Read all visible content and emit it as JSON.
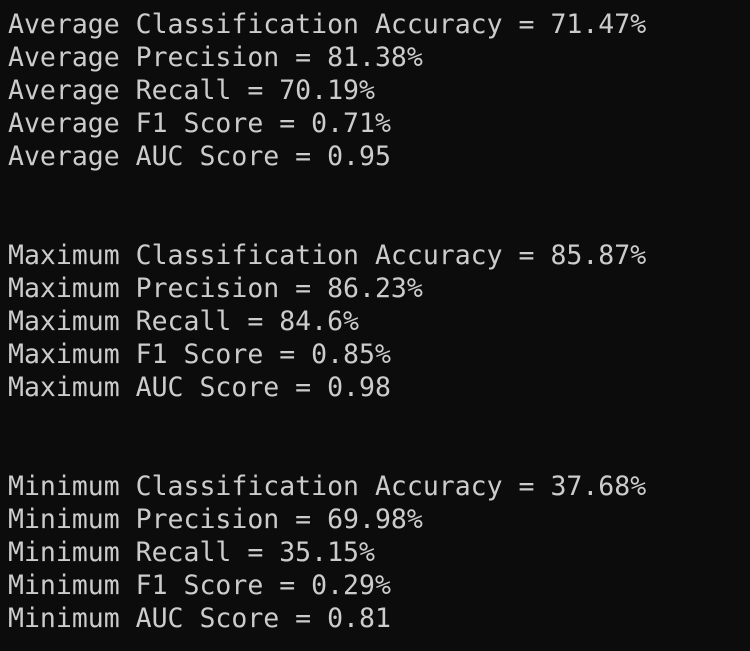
{
  "terminal": {
    "text_color": "#cccccc",
    "background_color": "#0c0c0c",
    "average": [
      "Average Classification Accuracy = 71.47%",
      "Average Precision = 81.38%",
      "Average Recall = 70.19%",
      "Average F1 Score = 0.71%",
      "Average AUC Score = 0.95"
    ],
    "maximum": [
      "Maximum Classification Accuracy = 85.87%",
      "Maximum Precision = 86.23%",
      "Maximum Recall = 84.6%",
      "Maximum F1 Score = 0.85%",
      "Maximum AUC Score = 0.98"
    ],
    "minimum": [
      "Minimum Classification Accuracy = 37.68%",
      "Minimum Precision = 69.98%",
      "Minimum Recall = 35.15%",
      "Minimum F1 Score = 0.29%",
      "Minimum AUC Score = 0.81"
    ]
  }
}
